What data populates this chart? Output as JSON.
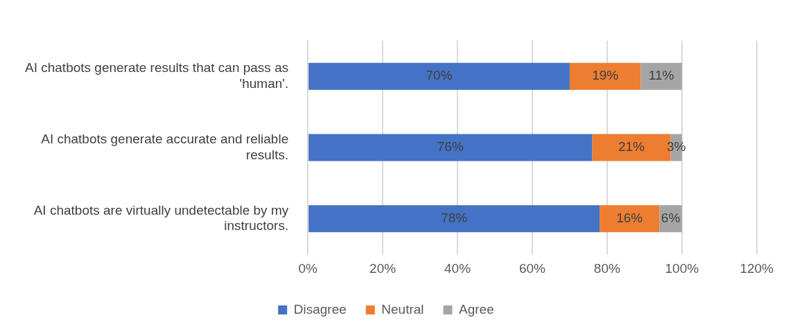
{
  "chart_data": {
    "type": "bar",
    "orientation": "horizontal",
    "stacked": true,
    "categories": [
      "AI chatbots generate results that can pass as 'human'.",
      "AI chatbots generate accurate and reliable results.",
      "AI chatbots are virtually undetectable by my instructors."
    ],
    "series": [
      {
        "name": "Disagree",
        "color": "#4472c4",
        "values": [
          70,
          76,
          78
        ],
        "value_labels": [
          "70%",
          "76%",
          "78%"
        ]
      },
      {
        "name": "Neutral",
        "color": "#ed7d31",
        "values": [
          19,
          21,
          16
        ],
        "value_labels": [
          "19%",
          "21%",
          "16%"
        ]
      },
      {
        "name": "Agree",
        "color": "#a5a5a5",
        "values": [
          11,
          3,
          6
        ],
        "value_labels": [
          "11%",
          "3%",
          "6%"
        ]
      }
    ],
    "xlim": [
      0,
      120
    ],
    "xticks": [
      {
        "value": 0,
        "label": "0%"
      },
      {
        "value": 20,
        "label": "20%"
      },
      {
        "value": 40,
        "label": "40%"
      },
      {
        "value": 60,
        "label": "60%"
      },
      {
        "value": 80,
        "label": "80%"
      },
      {
        "value": 100,
        "label": "100%"
      },
      {
        "value": 120,
        "label": "120%"
      }
    ],
    "grid": "x",
    "legend": "bottom"
  }
}
